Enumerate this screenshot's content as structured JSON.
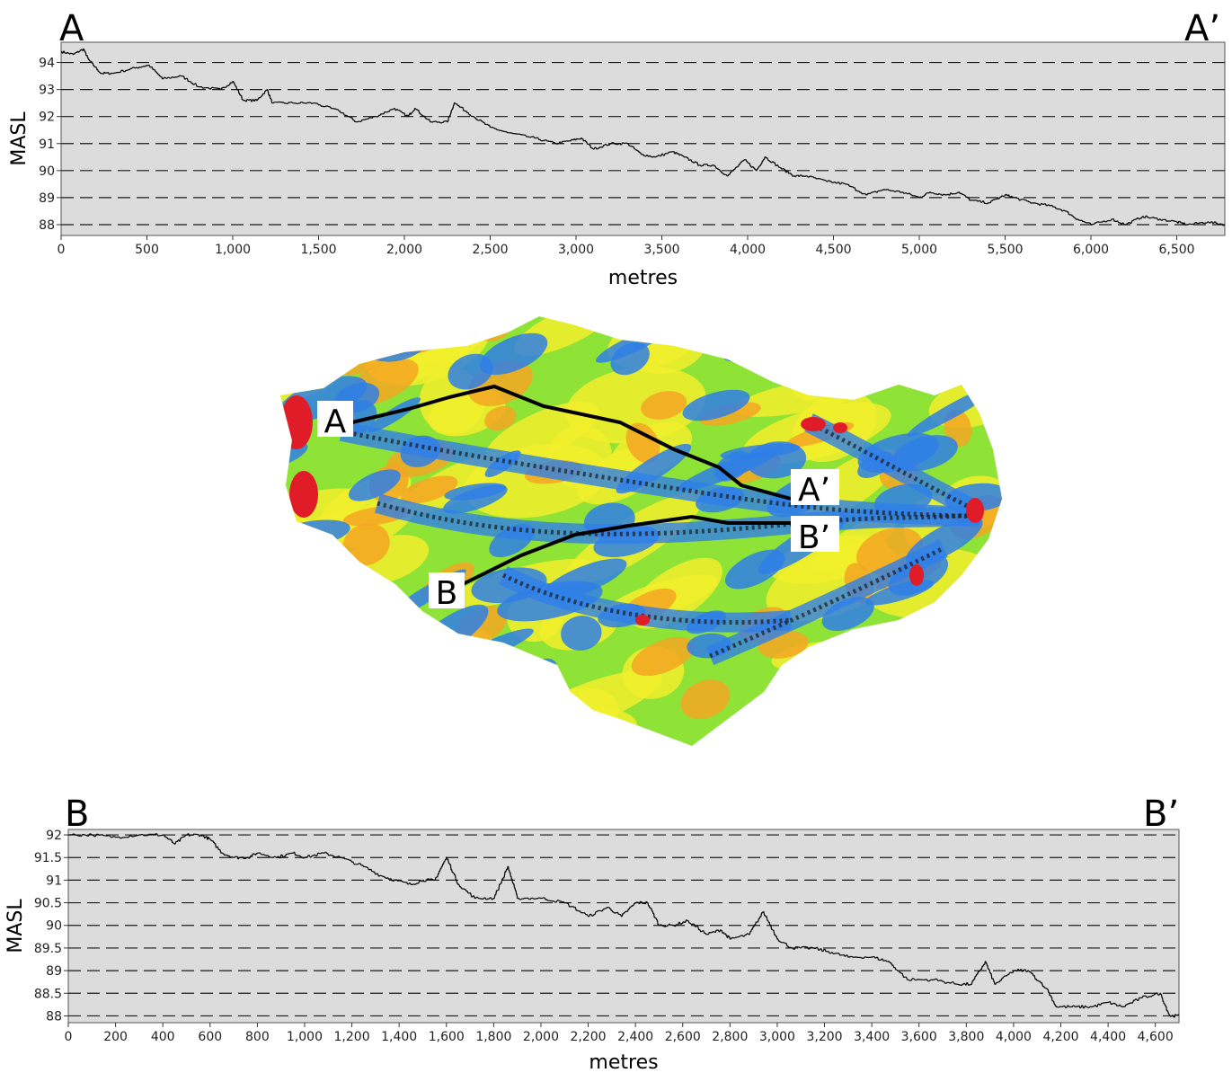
{
  "chart_data": [
    {
      "type": "line",
      "name": "profile-a",
      "start_label": "A",
      "end_label": "A’",
      "xlabel": "metres",
      "ylabel": "MASL",
      "xlim": [
        0,
        6780
      ],
      "ylim": [
        87.6,
        94.75
      ],
      "x_ticks": [
        0,
        500,
        1000,
        1500,
        2000,
        2500,
        3000,
        3500,
        4000,
        4500,
        5000,
        5500,
        6000,
        6500
      ],
      "x_tick_labels": [
        "0",
        "500",
        "1,000",
        "1,500",
        "2,000",
        "2,500",
        "3,000",
        "3,500",
        "4,000",
        "4,500",
        "5,000",
        "5,500",
        "6,000",
        "6,500"
      ],
      "y_ticks": [
        88,
        89,
        90,
        91,
        92,
        93,
        94
      ],
      "y_tick_labels": [
        "88",
        "89",
        "90",
        "91",
        "92",
        "93",
        "94"
      ],
      "grid": "dashed-horizontal",
      "x": [
        0,
        70,
        130,
        160,
        230,
        300,
        430,
        510,
        590,
        700,
        800,
        930,
        1000,
        1060,
        1140,
        1200,
        1230,
        1350,
        1470,
        1620,
        1720,
        1830,
        1940,
        2020,
        2060,
        2150,
        2250,
        2290,
        2400,
        2500,
        2600,
        2760,
        2880,
        2960,
        3030,
        3100,
        3200,
        3300,
        3380,
        3460,
        3560,
        3630,
        3720,
        3800,
        3880,
        3980,
        4050,
        4100,
        4190,
        4270,
        4340,
        4460,
        4570,
        4690,
        4790,
        4900,
        5000,
        5060,
        5150,
        5230,
        5300,
        5400,
        5500,
        5550,
        5660,
        5760,
        5850,
        5920,
        6000,
        6120,
        6200,
        6300,
        6400,
        6500,
        6560,
        6680,
        6780
      ],
      "y": [
        94.4,
        94.3,
        94.5,
        94.1,
        93.6,
        93.6,
        93.8,
        93.9,
        93.4,
        93.5,
        93.1,
        93.0,
        93.3,
        92.6,
        92.6,
        93.0,
        92.5,
        92.5,
        92.5,
        92.2,
        91.8,
        92.0,
        92.3,
        92.0,
        92.3,
        91.8,
        91.8,
        92.5,
        92.0,
        91.6,
        91.4,
        91.2,
        91.0,
        91.1,
        91.2,
        90.8,
        91.0,
        91.0,
        90.6,
        90.5,
        90.7,
        90.5,
        90.2,
        90.2,
        89.8,
        90.4,
        90.0,
        90.5,
        90.1,
        89.8,
        89.8,
        89.6,
        89.5,
        89.1,
        89.3,
        89.2,
        89.0,
        89.2,
        89.1,
        89.2,
        88.9,
        88.8,
        89.1,
        89.0,
        88.8,
        88.7,
        88.5,
        88.2,
        88.0,
        88.2,
        88.0,
        88.3,
        88.2,
        88.1,
        88.0,
        88.1,
        88.0
      ]
    },
    {
      "type": "line",
      "name": "profile-b",
      "start_label": "B",
      "end_label": "B’",
      "xlabel": "metres",
      "ylabel": "MASL",
      "xlim": [
        0,
        4700
      ],
      "ylim": [
        87.85,
        92.12
      ],
      "x_ticks": [
        0,
        200,
        400,
        600,
        800,
        1000,
        1200,
        1400,
        1600,
        1800,
        2000,
        2200,
        2400,
        2600,
        2800,
        3000,
        3200,
        3400,
        3600,
        3800,
        4000,
        4200,
        4400,
        4600
      ],
      "x_tick_labels": [
        "0",
        "200",
        "400",
        "600",
        "800",
        "1,000",
        "1,200",
        "1,400",
        "1,600",
        "1,800",
        "2,000",
        "2,200",
        "2,400",
        "2,600",
        "2,800",
        "3,000",
        "3,200",
        "3,400",
        "3,600",
        "3,800",
        "4,000",
        "4,200",
        "4,400",
        "4,600"
      ],
      "y_ticks": [
        88,
        88.5,
        89,
        89.5,
        90,
        90.5,
        91,
        91.5,
        92
      ],
      "y_tick_labels": [
        "88",
        "88.5",
        "89",
        "89.5",
        "90",
        "90.5",
        "91",
        "91.5",
        "92"
      ],
      "grid": "dashed-horizontal",
      "x": [
        0,
        100,
        200,
        300,
        400,
        450,
        500,
        560,
        600,
        650,
        700,
        760,
        800,
        880,
        950,
        1000,
        1080,
        1150,
        1250,
        1320,
        1380,
        1450,
        1500,
        1550,
        1600,
        1650,
        1720,
        1800,
        1860,
        1900,
        2000,
        2100,
        2200,
        2280,
        2340,
        2400,
        2450,
        2500,
        2560,
        2620,
        2700,
        2760,
        2800,
        2880,
        2940,
        3000,
        3060,
        3150,
        3230,
        3300,
        3400,
        3470,
        3550,
        3660,
        3760,
        3820,
        3880,
        3920,
        4000,
        4060,
        4140,
        4180,
        4260,
        4330,
        4400,
        4460,
        4540,
        4620,
        4660,
        4700
      ],
      "y": [
        92.0,
        92.0,
        91.95,
        92.0,
        92.0,
        91.8,
        92.0,
        92.0,
        91.9,
        91.6,
        91.5,
        91.5,
        91.6,
        91.5,
        91.6,
        91.5,
        91.6,
        91.5,
        91.3,
        91.1,
        91.0,
        90.9,
        91.0,
        91.0,
        91.5,
        90.9,
        90.6,
        90.6,
        91.3,
        90.6,
        90.6,
        90.5,
        90.2,
        90.4,
        90.2,
        90.5,
        90.5,
        90.0,
        90.0,
        90.1,
        89.8,
        89.9,
        89.7,
        89.8,
        90.3,
        89.7,
        89.5,
        89.5,
        89.4,
        89.3,
        89.3,
        89.2,
        88.8,
        88.8,
        88.7,
        88.7,
        89.2,
        88.7,
        89.0,
        89.0,
        88.6,
        88.2,
        88.2,
        88.2,
        88.3,
        88.2,
        88.4,
        88.5,
        88.0,
        88.0
      ]
    }
  ],
  "map": {
    "label_a": "A",
    "label_a_end": "A’",
    "label_b": "B",
    "label_b_end": "B’",
    "colors": {
      "green": "#8fe236",
      "yellow": "#f2ee2b",
      "orange": "#f5a623",
      "blue": "#2f7fe8",
      "red": "#e01c28",
      "dark": "#1b1b1b"
    }
  },
  "colors": {
    "plot_background": "#dcdcdc",
    "line": "#000000",
    "grid": "#1a1a1a"
  }
}
